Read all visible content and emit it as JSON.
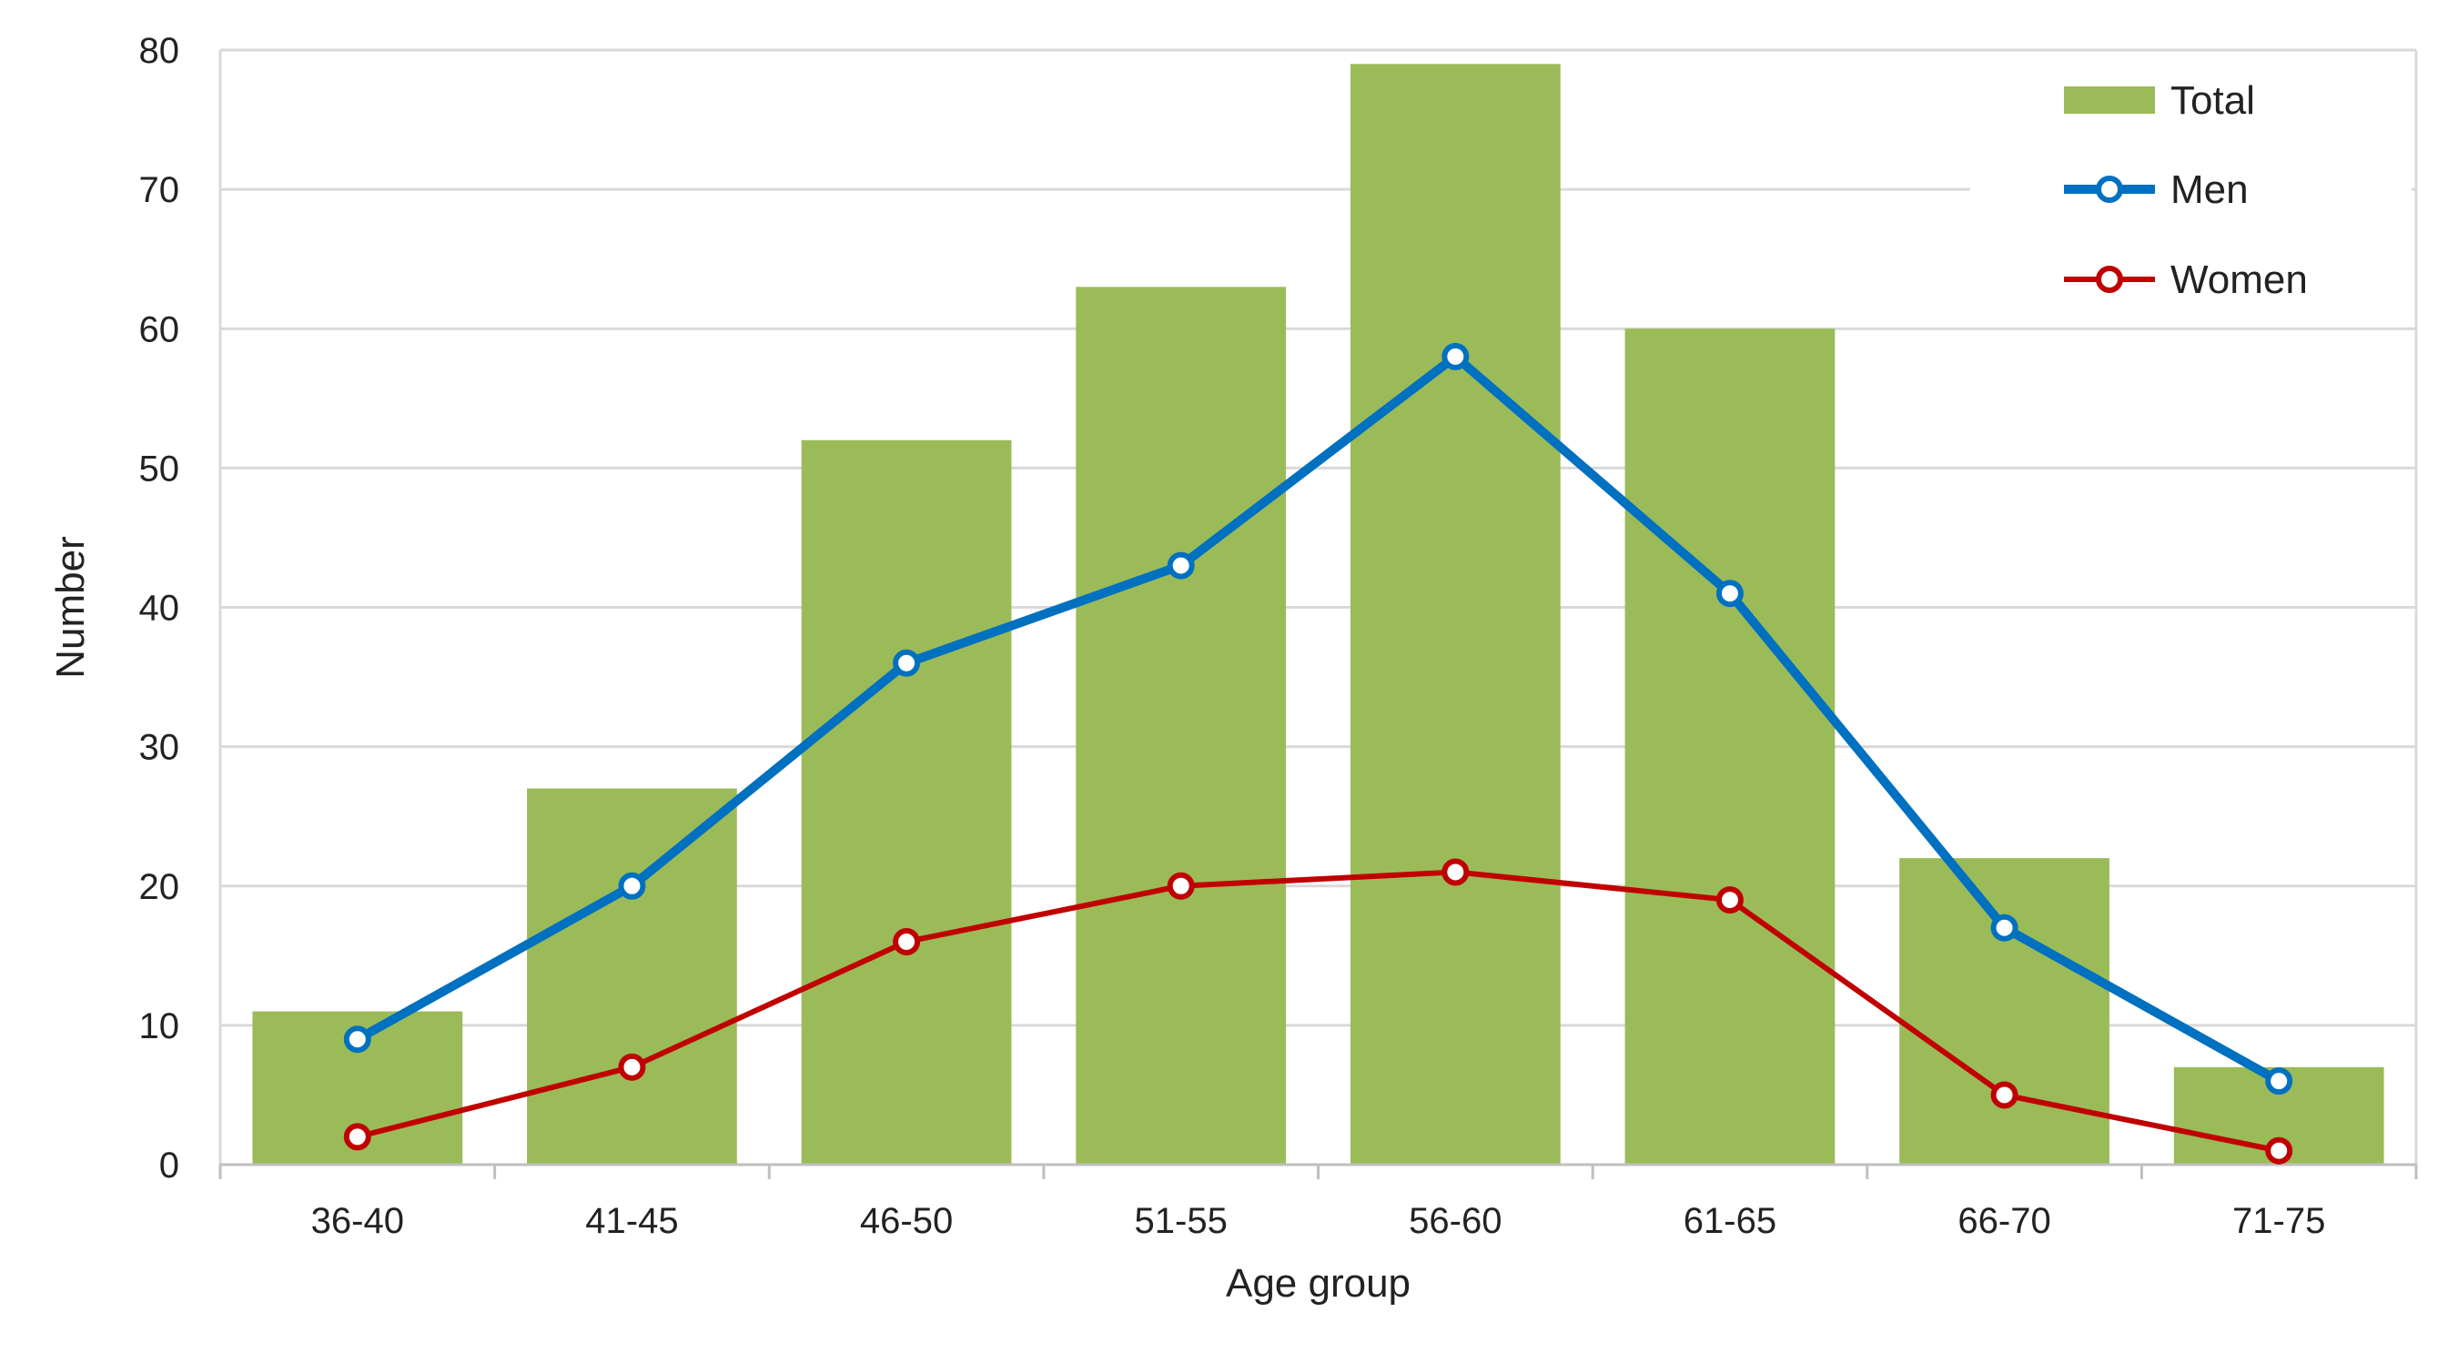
{
  "chart_data": {
    "type": "bar",
    "categories": [
      "36-40",
      "41-45",
      "46-50",
      "51-55",
      "56-60",
      "61-65",
      "66-70",
      "71-75"
    ],
    "series": [
      {
        "name": "Total",
        "type": "bar",
        "color": "#9BBB59",
        "values": [
          11,
          27,
          52,
          63,
          79,
          60,
          22,
          7
        ]
      },
      {
        "name": "Men",
        "type": "line",
        "color": "#0070C0",
        "values": [
          9,
          20,
          36,
          43,
          58,
          41,
          17,
          6
        ]
      },
      {
        "name": "Women",
        "type": "line",
        "color": "#C00000",
        "values": [
          2,
          7,
          16,
          20,
          21,
          19,
          5,
          1
        ]
      }
    ],
    "xlabel": "Age group",
    "ylabel": "Number",
    "ylim": [
      0,
      80
    ],
    "yticks": [
      0,
      10,
      20,
      30,
      40,
      50,
      60,
      70,
      80
    ],
    "grid": true,
    "legend": "top-right"
  }
}
